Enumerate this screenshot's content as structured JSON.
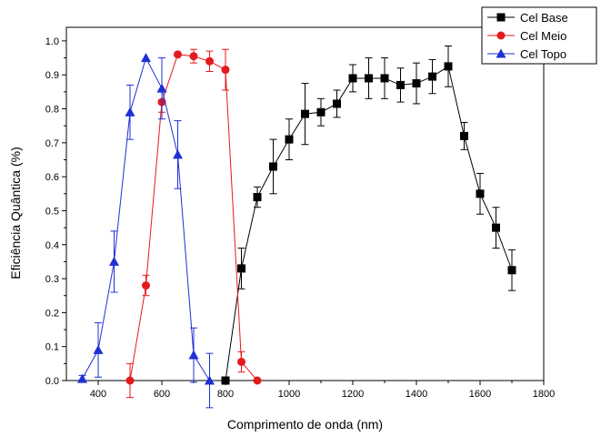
{
  "chart_data": {
    "type": "line",
    "xlabel": "Comprimento de onda (nm)",
    "ylabel": "Eficiência Quântica (%)",
    "xlim": [
      300,
      1800
    ],
    "ylim": [
      0.0,
      1.04
    ],
    "x_ticks": [
      400,
      600,
      800,
      1000,
      1200,
      1400,
      1600,
      1800
    ],
    "y_ticks": [
      0.0,
      0.1,
      0.2,
      0.3,
      0.4,
      0.5,
      0.6,
      0.7,
      0.8,
      0.9,
      1.0
    ],
    "x_tick_labels": [
      "400",
      "600",
      "800",
      "1000",
      "1200",
      "1400",
      "1600",
      "1800"
    ],
    "y_tick_labels": [
      "0.0",
      "0.1",
      "0.2",
      "0.3",
      "0.4",
      "0.5",
      "0.6",
      "0.7",
      "0.8",
      "0.9",
      "1.0"
    ],
    "grid": false,
    "legend_position": "top-right",
    "series": [
      {
        "name": "Cel Base",
        "color": "#000000",
        "marker": "square",
        "x": [
          800,
          850,
          900,
          950,
          1000,
          1050,
          1100,
          1150,
          1200,
          1250,
          1300,
          1350,
          1400,
          1450,
          1500,
          1550,
          1600,
          1650,
          1700
        ],
        "y": [
          0.0,
          0.33,
          0.54,
          0.63,
          0.71,
          0.785,
          0.79,
          0.815,
          0.89,
          0.89,
          0.89,
          0.87,
          0.875,
          0.895,
          0.925,
          0.72,
          0.55,
          0.45,
          0.325
        ],
        "err": [
          0.0,
          0.06,
          0.03,
          0.08,
          0.06,
          0.09,
          0.04,
          0.04,
          0.04,
          0.06,
          0.06,
          0.05,
          0.06,
          0.05,
          0.06,
          0.04,
          0.06,
          0.06,
          0.06
        ]
      },
      {
        "name": "Cel Meio",
        "color": "#e31a1c",
        "marker": "circle",
        "x": [
          500,
          550,
          600,
          650,
          700,
          750,
          800,
          850,
          900
        ],
        "y": [
          0.0,
          0.28,
          0.82,
          0.96,
          0.955,
          0.94,
          0.915,
          0.055,
          0.0
        ],
        "err": [
          0.05,
          0.03,
          0.03,
          0.0,
          0.02,
          0.03,
          0.06,
          0.03,
          0.0
        ]
      },
      {
        "name": "Cel Topo",
        "color": "#1f2fd6",
        "marker": "triangle",
        "x": [
          350,
          400,
          450,
          500,
          550,
          600,
          650,
          700,
          750
        ],
        "y": [
          0.005,
          0.09,
          0.35,
          0.79,
          0.95,
          0.86,
          0.665,
          0.075,
          0.0
        ],
        "err": [
          0.01,
          0.08,
          0.09,
          0.08,
          0.0,
          0.09,
          0.1,
          0.08,
          0.08
        ]
      }
    ]
  }
}
